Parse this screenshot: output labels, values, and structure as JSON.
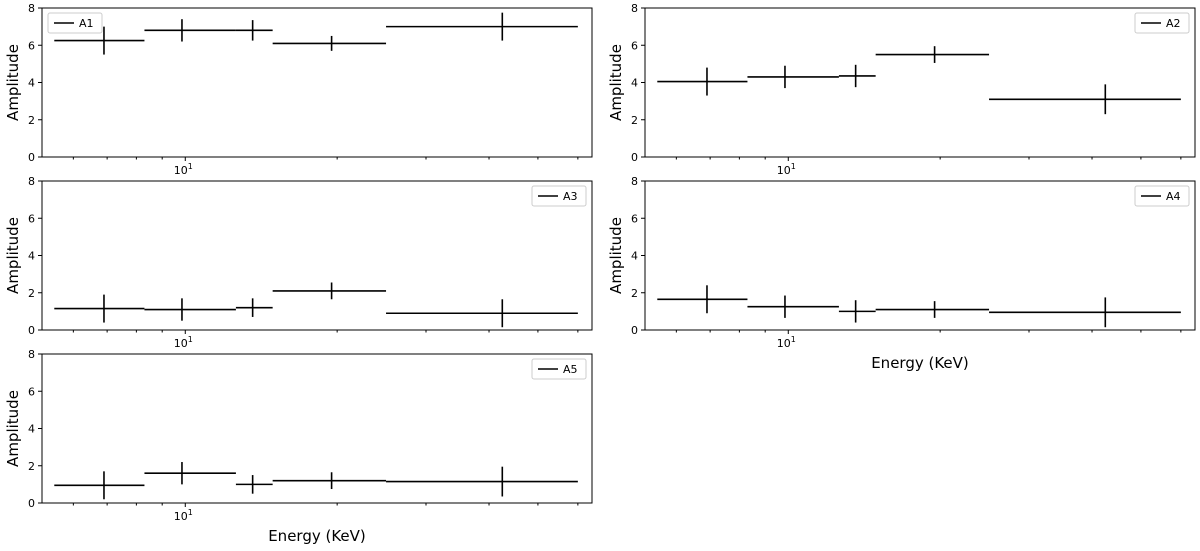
{
  "chart_data": [
    {
      "type": "errorbar",
      "legend": "A1",
      "legend_position": "top-left",
      "ylabel": "Amplitude",
      "xlabel": "",
      "x_scale": "log",
      "xlim": [
        5.2,
        64
      ],
      "ylim": [
        0,
        8
      ],
      "yticks": [
        "0",
        "2",
        "4",
        "6",
        "8"
      ],
      "xtick_label_base": "10",
      "xtick_label_exp": "1",
      "points": [
        {
          "x": 6.9,
          "x_low": 5.5,
          "x_high": 8.3,
          "y": 6.25,
          "y_err": 0.75
        },
        {
          "x": 9.85,
          "x_low": 8.3,
          "x_high": 12.6,
          "y": 6.8,
          "y_err": 0.6
        },
        {
          "x": 13.6,
          "x_low": 12.6,
          "x_high": 14.9,
          "y": 6.8,
          "y_err": 0.55
        },
        {
          "x": 19.5,
          "x_low": 14.9,
          "x_high": 25.0,
          "y": 6.1,
          "y_err": 0.4
        },
        {
          "x": 42.5,
          "x_low": 25.0,
          "x_high": 60.0,
          "y": 7.0,
          "y_err": 0.75
        }
      ]
    },
    {
      "type": "errorbar",
      "legend": "A2",
      "legend_position": "top-right",
      "ylabel": "Amplitude",
      "xlabel": "",
      "x_scale": "log",
      "xlim": [
        5.2,
        64
      ],
      "ylim": [
        0,
        8
      ],
      "yticks": [
        "0",
        "2",
        "4",
        "6",
        "8"
      ],
      "xtick_label_base": "10",
      "xtick_label_exp": "1",
      "points": [
        {
          "x": 6.9,
          "x_low": 5.5,
          "x_high": 8.3,
          "y": 4.05,
          "y_err": 0.75
        },
        {
          "x": 9.85,
          "x_low": 8.3,
          "x_high": 12.6,
          "y": 4.3,
          "y_err": 0.6
        },
        {
          "x": 13.6,
          "x_low": 12.6,
          "x_high": 14.9,
          "y": 4.35,
          "y_err": 0.6
        },
        {
          "x": 19.5,
          "x_low": 14.9,
          "x_high": 25.0,
          "y": 5.5,
          "y_err": 0.45
        },
        {
          "x": 42.5,
          "x_low": 25.0,
          "x_high": 60.0,
          "y": 3.1,
          "y_err": 0.8
        }
      ]
    },
    {
      "type": "errorbar",
      "legend": "A3",
      "legend_position": "top-right",
      "ylabel": "Amplitude",
      "xlabel": "",
      "x_scale": "log",
      "xlim": [
        5.2,
        64
      ],
      "ylim": [
        0,
        8
      ],
      "yticks": [
        "0",
        "2",
        "4",
        "6",
        "8"
      ],
      "xtick_label_base": "10",
      "xtick_label_exp": "1",
      "points": [
        {
          "x": 6.9,
          "x_low": 5.5,
          "x_high": 8.3,
          "y": 1.15,
          "y_err": 0.75
        },
        {
          "x": 9.85,
          "x_low": 8.3,
          "x_high": 12.6,
          "y": 1.1,
          "y_err": 0.6
        },
        {
          "x": 13.6,
          "x_low": 12.6,
          "x_high": 14.9,
          "y": 1.2,
          "y_err": 0.5
        },
        {
          "x": 19.5,
          "x_low": 14.9,
          "x_high": 25.0,
          "y": 2.1,
          "y_err": 0.45
        },
        {
          "x": 42.5,
          "x_low": 25.0,
          "x_high": 60.0,
          "y": 0.9,
          "y_err": 0.75
        }
      ]
    },
    {
      "type": "errorbar",
      "legend": "A4",
      "legend_position": "top-right",
      "ylabel": "Amplitude",
      "xlabel": "Energy (KeV)",
      "x_scale": "log",
      "xlim": [
        5.2,
        64
      ],
      "ylim": [
        0,
        8
      ],
      "yticks": [
        "0",
        "2",
        "4",
        "6",
        "8"
      ],
      "xtick_label_base": "10",
      "xtick_label_exp": "1",
      "points": [
        {
          "x": 6.9,
          "x_low": 5.5,
          "x_high": 8.3,
          "y": 1.65,
          "y_err": 0.75
        },
        {
          "x": 9.85,
          "x_low": 8.3,
          "x_high": 12.6,
          "y": 1.25,
          "y_err": 0.6
        },
        {
          "x": 13.6,
          "x_low": 12.6,
          "x_high": 14.9,
          "y": 1.0,
          "y_err": 0.6
        },
        {
          "x": 19.5,
          "x_low": 14.9,
          "x_high": 25.0,
          "y": 1.1,
          "y_err": 0.45
        },
        {
          "x": 42.5,
          "x_low": 25.0,
          "x_high": 60.0,
          "y": 0.95,
          "y_err": 0.8
        }
      ]
    },
    {
      "type": "errorbar",
      "legend": "A5",
      "legend_position": "top-right",
      "ylabel": "Amplitude",
      "xlabel": "Energy (KeV)",
      "x_scale": "log",
      "xlim": [
        5.2,
        64
      ],
      "ylim": [
        0,
        8
      ],
      "yticks": [
        "0",
        "2",
        "4",
        "6",
        "8"
      ],
      "xtick_label_base": "10",
      "xtick_label_exp": "1",
      "points": [
        {
          "x": 6.9,
          "x_low": 5.5,
          "x_high": 8.3,
          "y": 0.95,
          "y_err": 0.75
        },
        {
          "x": 9.85,
          "x_low": 8.3,
          "x_high": 12.6,
          "y": 1.6,
          "y_err": 0.6
        },
        {
          "x": 13.6,
          "x_low": 12.6,
          "x_high": 14.9,
          "y": 1.0,
          "y_err": 0.5
        },
        {
          "x": 19.5,
          "x_low": 14.9,
          "x_high": 25.0,
          "y": 1.2,
          "y_err": 0.45
        },
        {
          "x": 42.5,
          "x_low": 25.0,
          "x_high": 60.0,
          "y": 1.15,
          "y_err": 0.8
        }
      ]
    }
  ],
  "colors": {
    "line": "#000000",
    "axis": "#000000",
    "background": "#ffffff",
    "legend_border": "#cccccc"
  }
}
